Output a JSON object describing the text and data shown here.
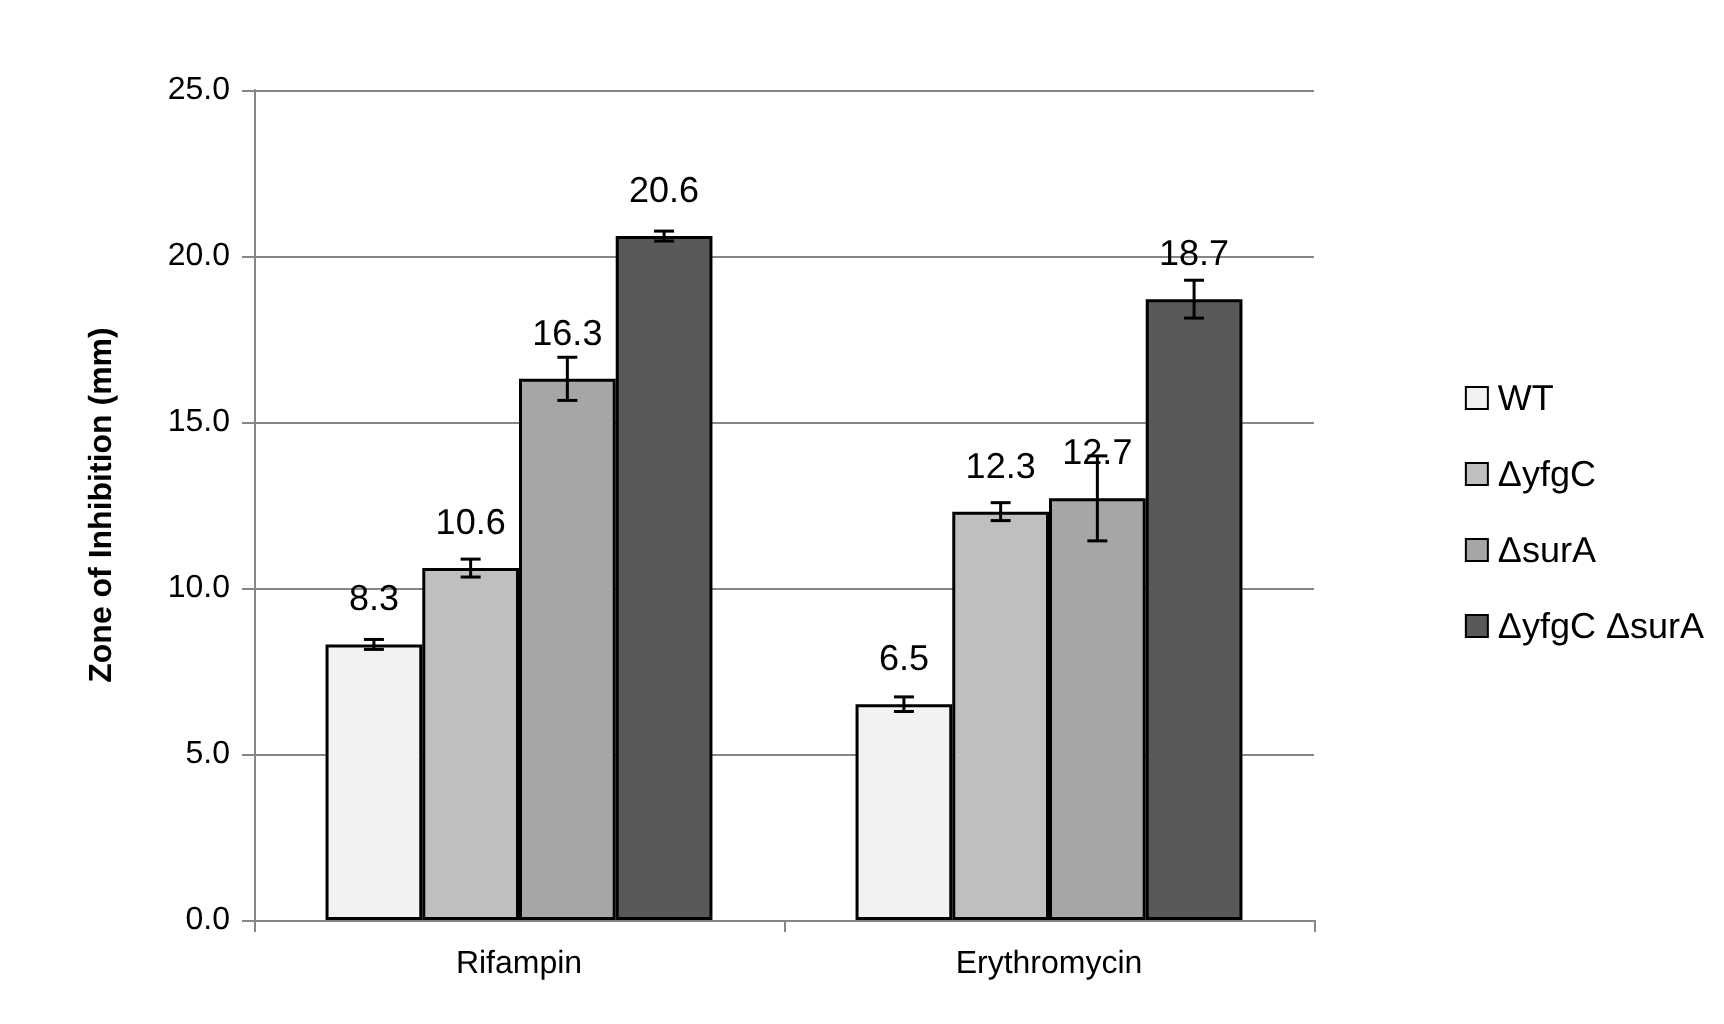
{
  "chart_data": {
    "type": "bar",
    "ylabel": "Zone of Inhibition (mm)",
    "categories": [
      "Rifampin",
      "Erythromycin"
    ],
    "series": [
      {
        "name": "WT",
        "color": "#f2f2f2",
        "values": [
          8.3,
          6.5
        ],
        "errors": [
          0.15,
          0.22
        ]
      },
      {
        "name": "ΔyfgC",
        "color": "#bfbfbf",
        "values": [
          10.6,
          12.3
        ],
        "errors": [
          0.27,
          0.27
        ]
      },
      {
        "name": "ΔsurA",
        "color": "#a6a6a6",
        "values": [
          16.3,
          12.7
        ],
        "errors": [
          0.65,
          1.28
        ]
      },
      {
        "name": "ΔyfgC ΔsurA",
        "color": "#595959",
        "values": [
          20.6,
          18.7
        ],
        "errors": [
          0.15,
          0.57
        ]
      }
    ],
    "ylim": [
      0,
      25
    ],
    "yticks": [
      {
        "value": 0,
        "label": "0.0"
      },
      {
        "value": 5,
        "label": "5.0"
      },
      {
        "value": 10,
        "label": "10.0"
      },
      {
        "value": 15,
        "label": "15.0"
      },
      {
        "value": 20,
        "label": "20.0"
      },
      {
        "value": 25,
        "label": "25.0"
      }
    ],
    "grid": "y",
    "legend": "right",
    "data_labels": true
  }
}
